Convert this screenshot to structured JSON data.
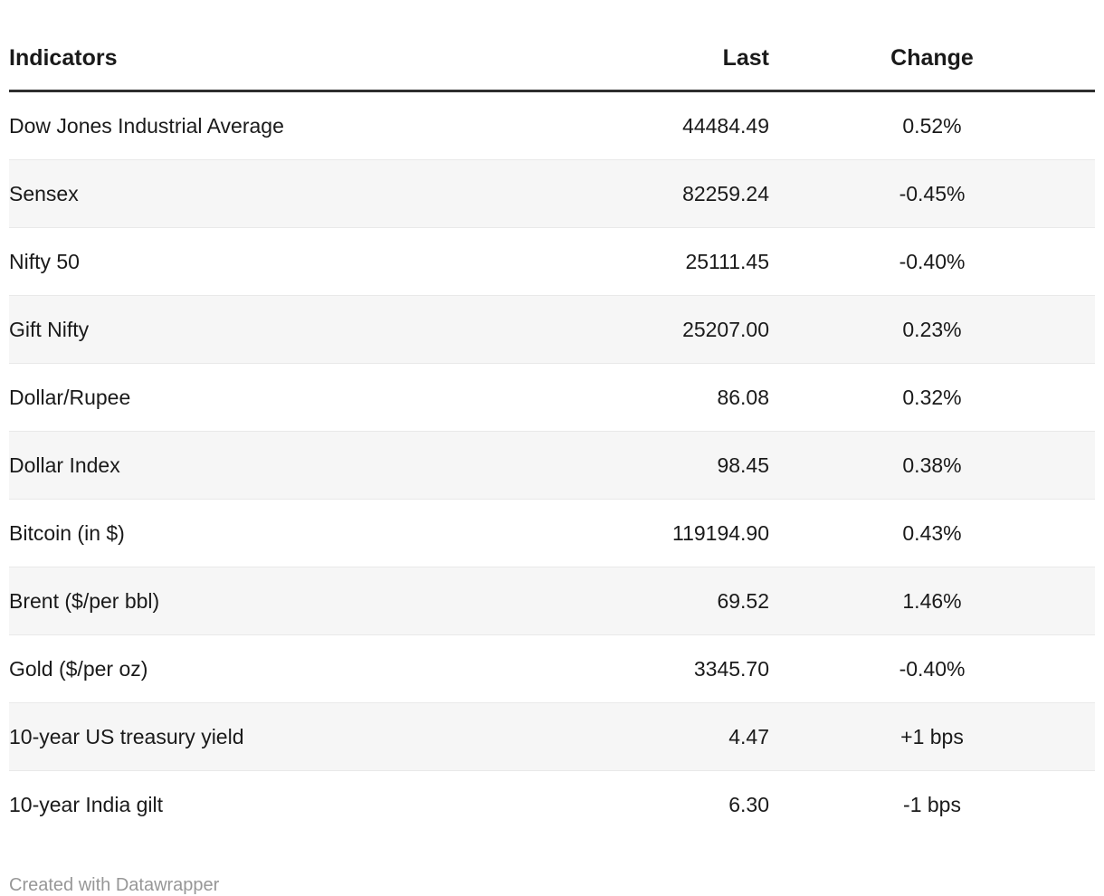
{
  "chart_data": {
    "type": "table",
    "columns": [
      {
        "label": "Indicators",
        "align": "left"
      },
      {
        "label": "Last",
        "align": "right"
      },
      {
        "label": "Change",
        "align": "center"
      }
    ],
    "rows": [
      {
        "indicator": "Dow Jones Industrial Average",
        "last": "44484.49",
        "change": "0.52%"
      },
      {
        "indicator": "Sensex",
        "last": "82259.24",
        "change": "-0.45%"
      },
      {
        "indicator": "Nifty 50",
        "last": "25111.45",
        "change": "-0.40%"
      },
      {
        "indicator": "Gift Nifty",
        "last": "25207.00",
        "change": "0.23%"
      },
      {
        "indicator": "Dollar/Rupee",
        "last": "86.08",
        "change": "0.32%"
      },
      {
        "indicator": "Dollar Index",
        "last": "98.45",
        "change": "0.38%"
      },
      {
        "indicator": "Bitcoin (in $)",
        "last": "119194.90",
        "change": "0.43%"
      },
      {
        "indicator": "Brent ($/per bbl)",
        "last": "69.52",
        "change": "1.46%"
      },
      {
        "indicator": "Gold ($/per oz)",
        "last": "3345.70",
        "change": "-0.40%"
      },
      {
        "indicator": "10-year US treasury yield",
        "last": "4.47",
        "change": "+1 bps"
      },
      {
        "indicator": "10-year India gilt",
        "last": "6.30",
        "change": "-1 bps"
      }
    ],
    "layout": {
      "striped_rows": true,
      "stripe_start_row": 2,
      "header_rule": "thick-dark"
    }
  },
  "footer": {
    "credit": "Created with Datawrapper"
  },
  "colors": {
    "text": "#1a1a1a",
    "header_border": "#2e2e2e",
    "stripe_background": "#f6f6f6",
    "stripe_border": "#e9e9e9",
    "footer_text": "#979797",
    "page_background": "#ffffff"
  }
}
